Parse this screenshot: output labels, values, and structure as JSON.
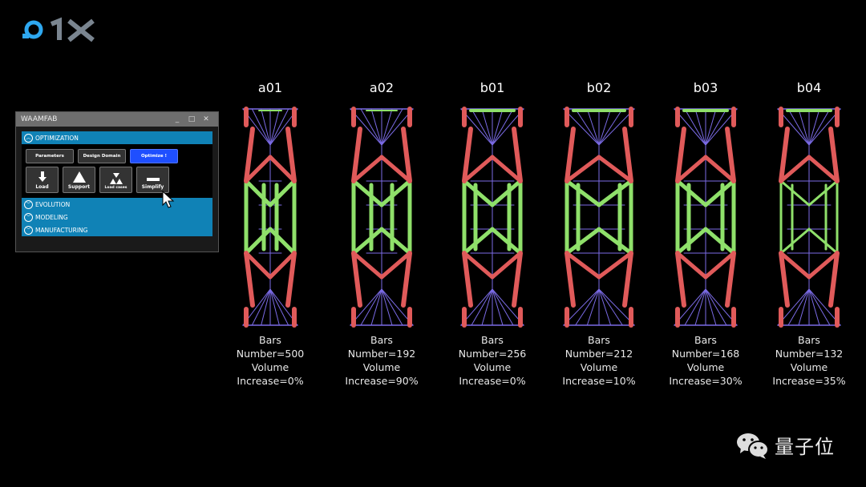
{
  "logo": {
    "text": "O1X",
    "colors": {
      "accent": "#2ea8f0",
      "gray": "#7a8590"
    }
  },
  "panel": {
    "title": "WAAMFAB",
    "window_buttons": [
      "_",
      "□",
      "✕"
    ],
    "sections": [
      {
        "label": "OPTIMIZATION",
        "expanded": true
      },
      {
        "label": "EVOLUTION",
        "expanded": false
      },
      {
        "label": "MODELING",
        "expanded": false
      },
      {
        "label": "MANUFACTURING",
        "expanded": false
      }
    ],
    "top_buttons": [
      "Parameters",
      "Design Domain",
      "Optimize !"
    ],
    "tool_buttons": [
      {
        "label": "Load",
        "icon": "arrow-down-icon"
      },
      {
        "label": "Support",
        "icon": "triangle-icon"
      },
      {
        "label": "Load cases",
        "icon": "triangles-icon"
      },
      {
        "label": "Simplify",
        "icon": "minus-icon"
      }
    ],
    "colors": {
      "section": "#1082b6",
      "primary": "#1f4fff"
    }
  },
  "structures": [
    {
      "name": "a01",
      "l1": "Bars",
      "l2": "Number=500",
      "l3": "Volume",
      "l4": "Increase=0%"
    },
    {
      "name": "a02",
      "l1": "Bars",
      "l2": "Number=192",
      "l3": "Volume",
      "l4": "Increase=90%"
    },
    {
      "name": "b01",
      "l1": "Bars",
      "l2": "Number=256",
      "l3": "Volume",
      "l4": "Increase=0%"
    },
    {
      "name": "b02",
      "l1": "Bars",
      "l2": "Number=212",
      "l3": "Volume",
      "l4": "Increase=10%"
    },
    {
      "name": "b03",
      "l1": "Bars",
      "l2": "Number=168",
      "l3": "Volume",
      "l4": "Increase=30%"
    },
    {
      "name": "b04",
      "l1": "Bars",
      "l2": "Number=132",
      "l3": "Volume",
      "l4": "Increase=35%"
    }
  ],
  "bar_colors": {
    "compression": "#e05a5a",
    "tension": "#8fe06a",
    "thin": "#7b6be6"
  },
  "watermark": {
    "text": "量子位",
    "icon": "wechat-icon"
  }
}
